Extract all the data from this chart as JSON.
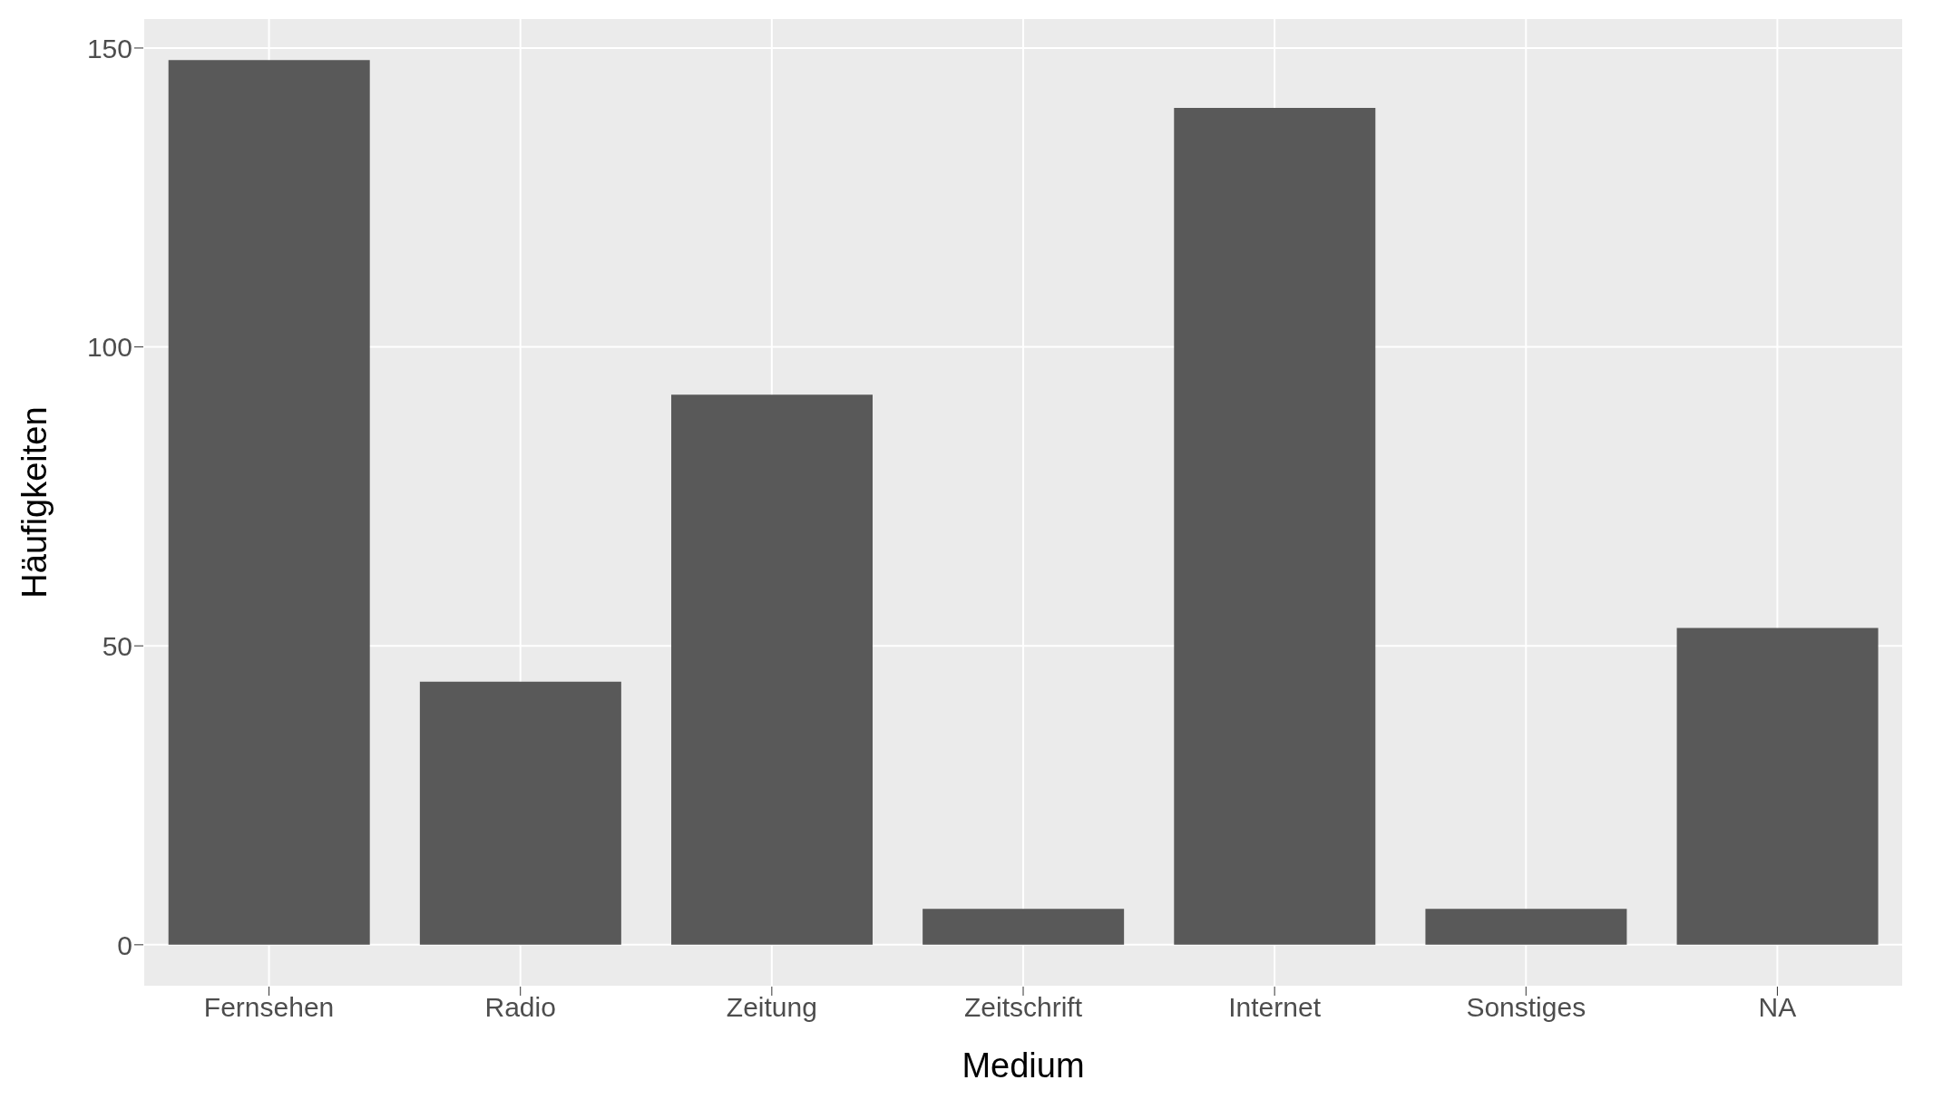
{
  "chart_data": {
    "type": "bar",
    "xlabel": "Medium",
    "ylabel": "Häufigkeiten",
    "categories": [
      "Fernsehen",
      "Radio",
      "Zeitung",
      "Zeitschrift",
      "Internet",
      "Sonstiges",
      "NA"
    ],
    "values": [
      148,
      44,
      92,
      6,
      140,
      6,
      53
    ],
    "color": "#595959",
    "ylim": [
      -7,
      155
    ],
    "yticks": [
      0,
      50,
      100,
      150
    ],
    "grid": true
  }
}
